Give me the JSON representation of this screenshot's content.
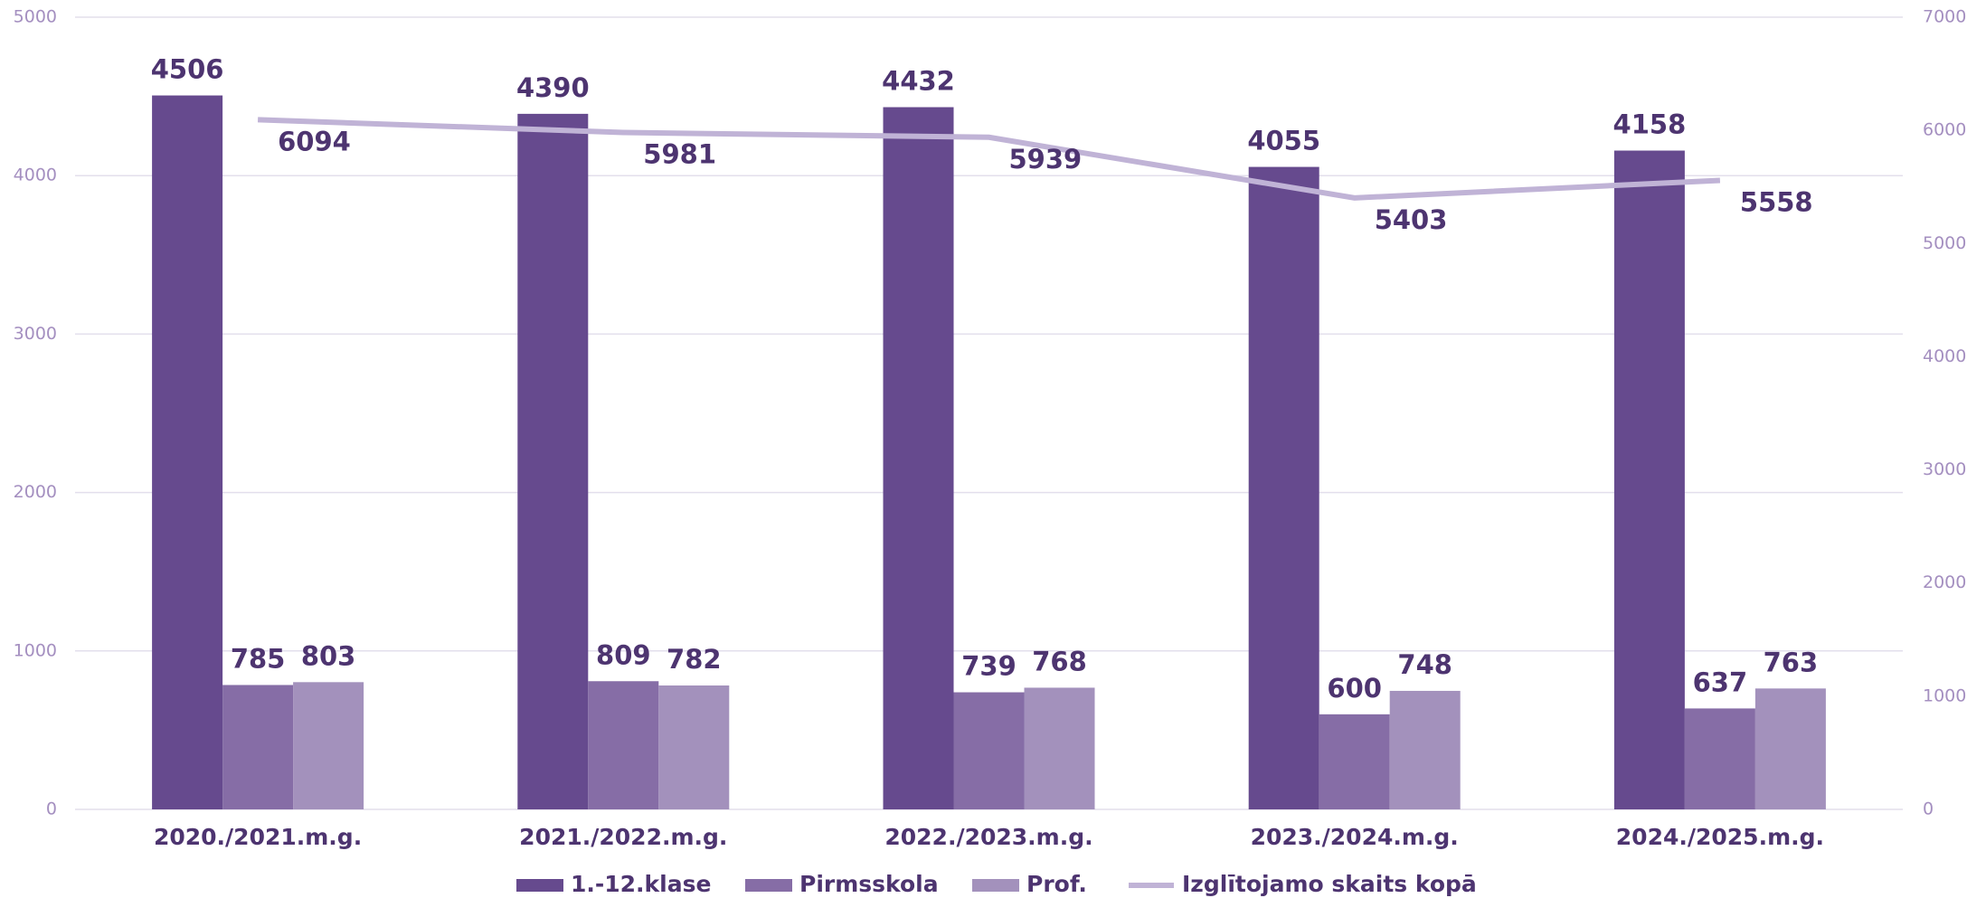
{
  "chart_data": {
    "type": "bar",
    "categories": [
      "2020./2021.m.g.",
      "2021./2022.m.g.",
      "2022./2023.m.g.",
      "2023./2024.m.g.",
      "2024./2025.m.g."
    ],
    "series": [
      {
        "name": "1.-12.klase",
        "color": "#664a8e",
        "values": [
          4506,
          4390,
          4432,
          4055,
          4158
        ]
      },
      {
        "name": "Pirmsskola",
        "color": "#866da6",
        "values": [
          785,
          809,
          739,
          600,
          637
        ]
      },
      {
        "name": "Prof.",
        "color": "#a391bc",
        "values": [
          803,
          782,
          768,
          748,
          763
        ]
      },
      {
        "name": "Izglītojamo skaits kopā",
        "color": "#c0b3d6",
        "type": "line",
        "axis": "y2",
        "values": [
          6094,
          5981,
          5939,
          5403,
          5558
        ]
      }
    ],
    "ylim": [
      0,
      5000
    ],
    "yticks": [
      0,
      1000,
      2000,
      3000,
      4000,
      5000
    ],
    "y2lim": [
      0,
      7000
    ],
    "y2ticks": [
      0,
      1000,
      2000,
      3000,
      4000,
      5000,
      6000,
      7000
    ],
    "grid": true,
    "legend": "bottom"
  }
}
